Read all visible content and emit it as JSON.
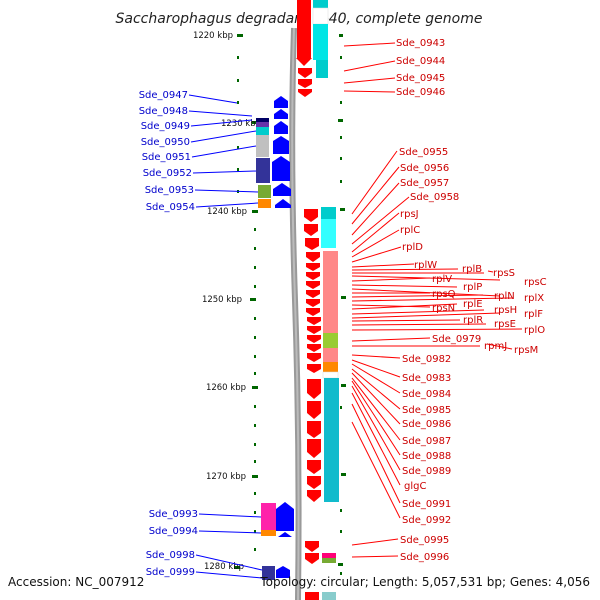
{
  "title": "Saccharophagus degradans 2-40, complete genome",
  "footer": {
    "accession": "Accession: NC_007912",
    "topology": "Topology: circular; Length: 5,057,531 bp; Genes: 4,056"
  },
  "colors": {
    "forward_gene": "#ff0000",
    "reverse_gene": "#0000ff",
    "left_label": "#0000cc",
    "right_label": "#cc0000",
    "tick": "#006600"
  },
  "scale_labels": [
    "1220 kbp",
    "1230 kbp",
    "1240 kbp",
    "1250 kbp",
    "1260 kbp",
    "1270 kbp",
    "1280 kbp"
  ],
  "left_genes": [
    "Sde_0947",
    "Sde_0948",
    "Sde_0949",
    "Sde_0950",
    "Sde_0951",
    "Sde_0952",
    "Sde_0953",
    "Sde_0954",
    "Sde_0993",
    "Sde_0994",
    "Sde_0998",
    "Sde_0999"
  ],
  "right_genes": [
    "Sde_0943",
    "Sde_0944",
    "Sde_0945",
    "Sde_0946",
    "Sde_0955",
    "Sde_0956",
    "Sde_0957",
    "Sde_0958",
    "rpsJ",
    "rplC",
    "rplD",
    "rplW",
    "rplB",
    "rpsS",
    "rplV",
    "rplP",
    "rpsC",
    "rpsQ",
    "rplN",
    "rplX",
    "rpsN",
    "rplE",
    "rpsH",
    "rplF",
    "rplR",
    "rpsE",
    "rplO",
    "Sde_0979",
    "rpmJ",
    "rpsM",
    "Sde_0982",
    "Sde_0983",
    "Sde_0984",
    "Sde_0985",
    "Sde_0986",
    "Sde_0987",
    "Sde_0988",
    "Sde_0989",
    "glgC",
    "Sde_0991",
    "Sde_0992",
    "Sde_0995",
    "Sde_0996"
  ]
}
